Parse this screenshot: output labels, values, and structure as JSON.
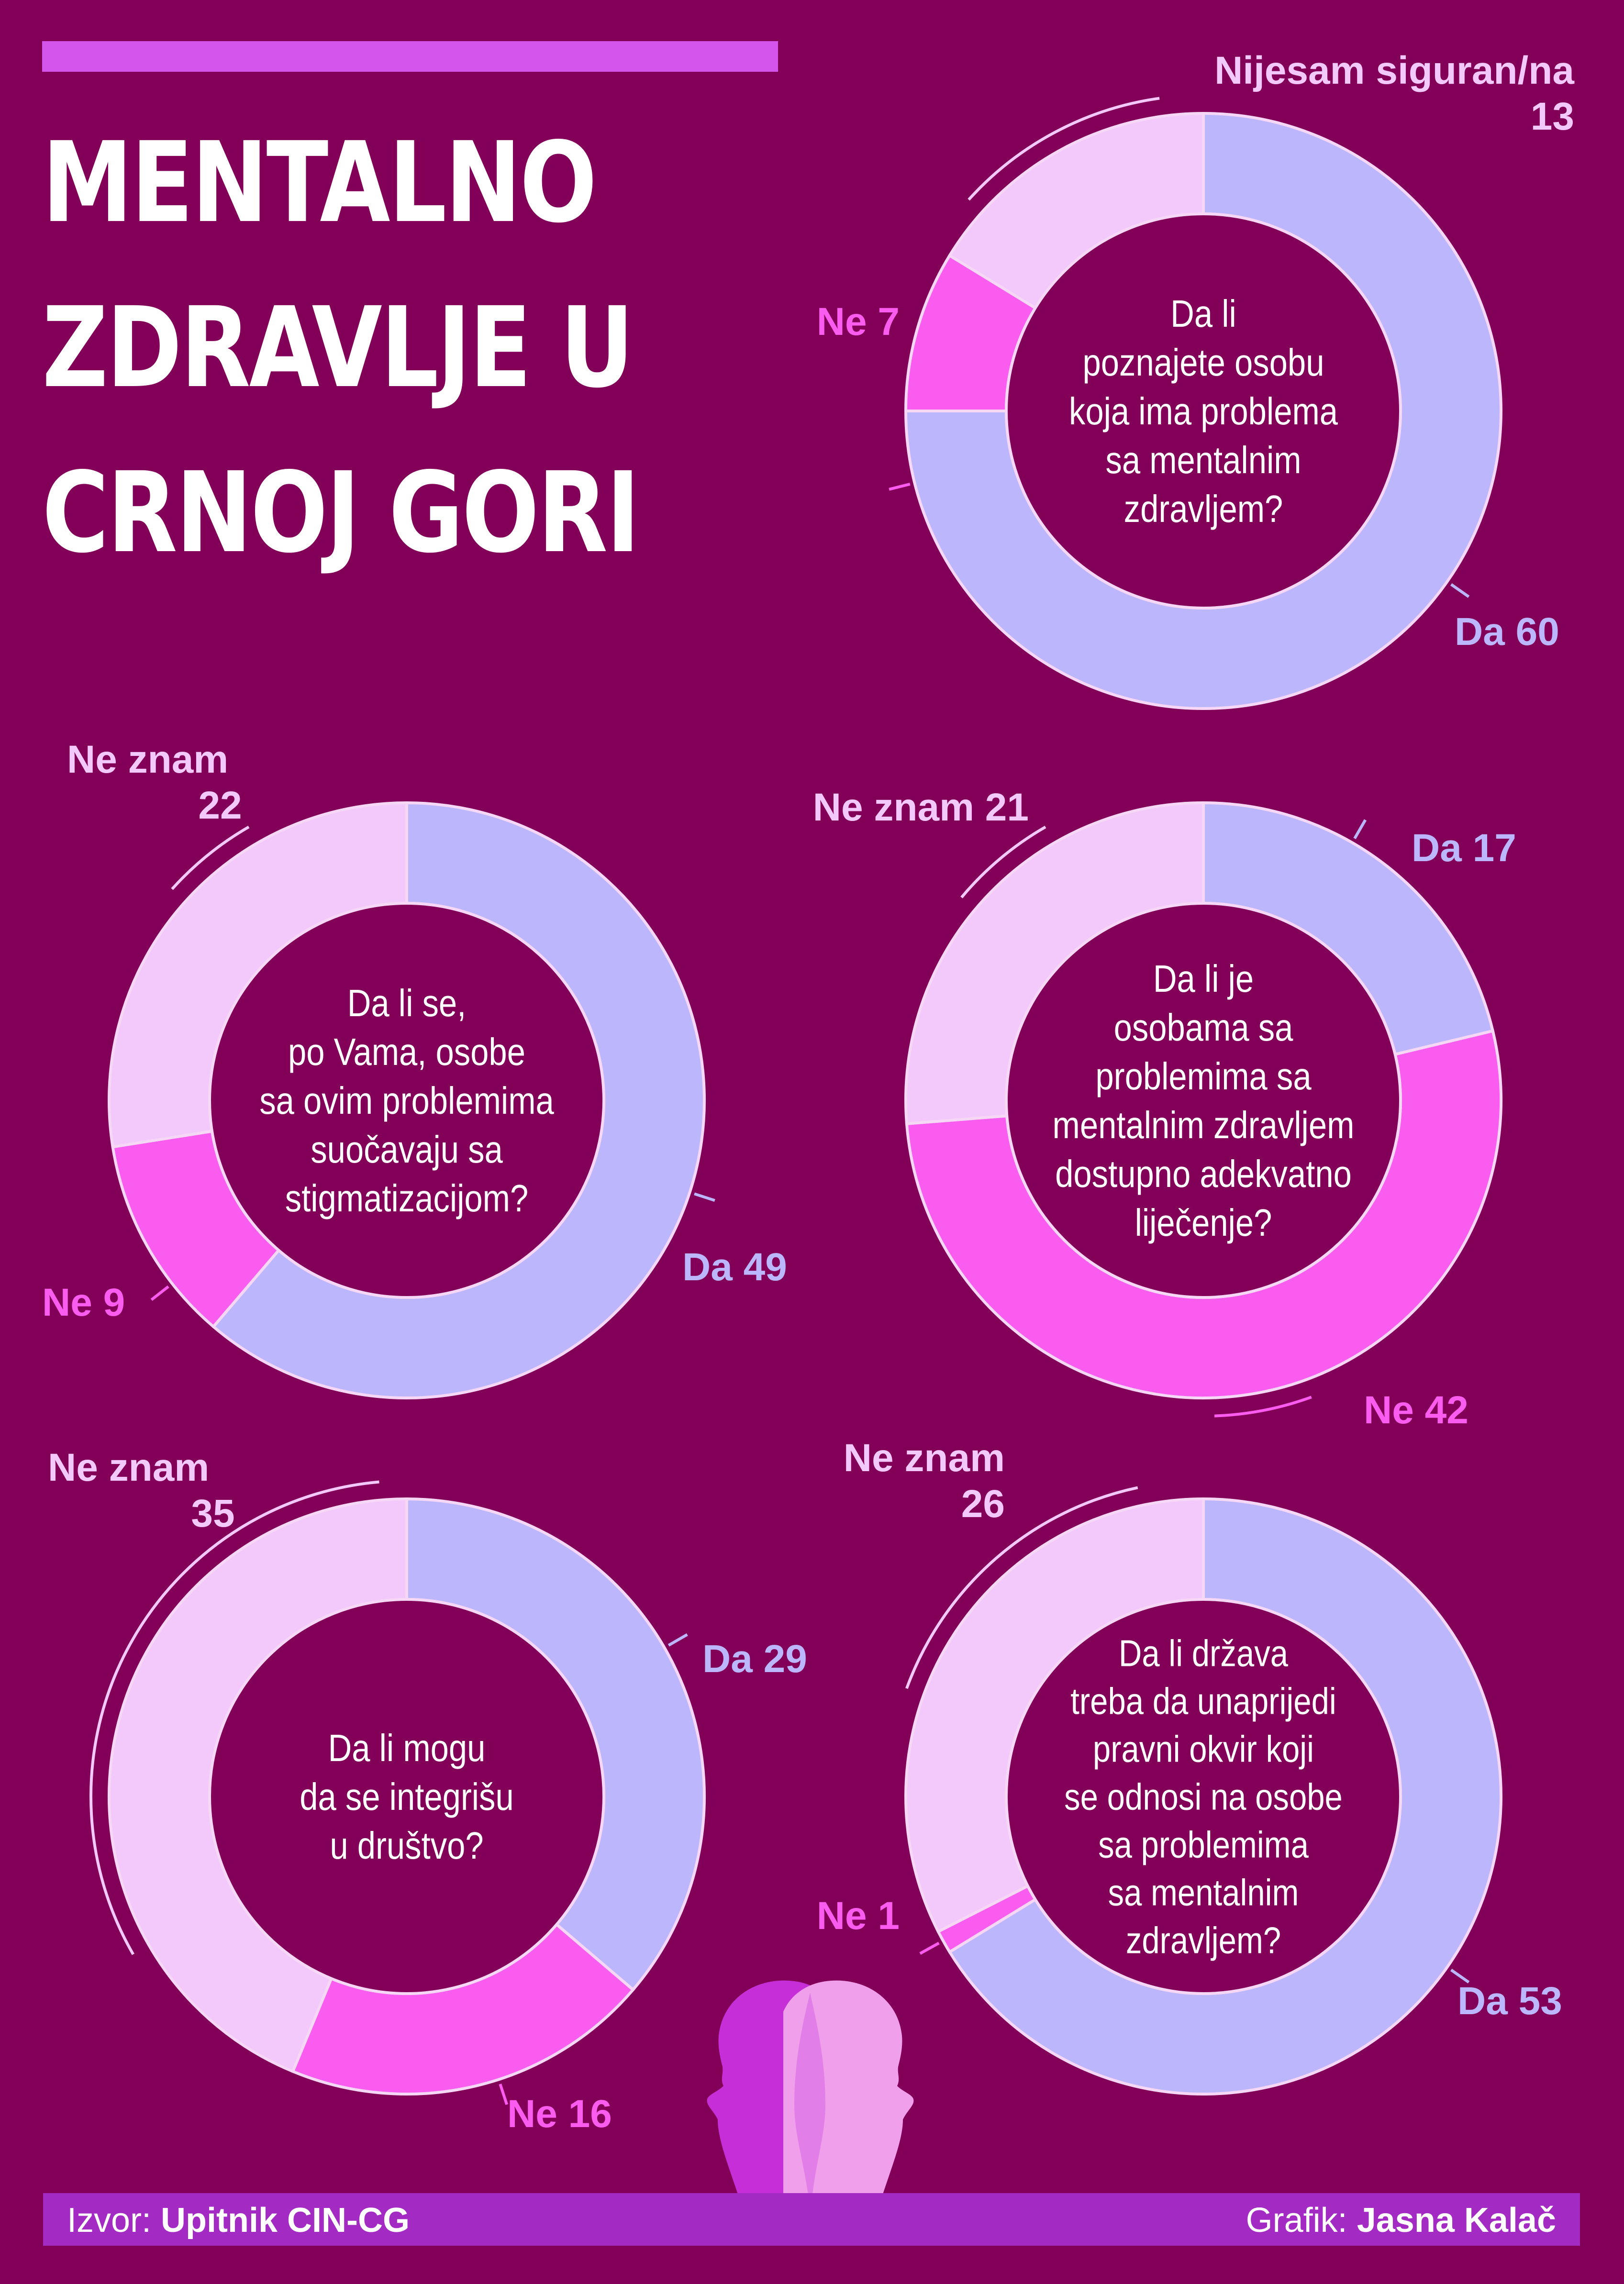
{
  "header": {
    "title_lines": [
      "MENTALNO",
      "ZDRAVLJE U",
      "CRNOJ GORI"
    ]
  },
  "footer": {
    "source_label": "Izvor:",
    "source_value": "Upitnik CIN-CG",
    "credit_label": "Grafik:",
    "credit_value": "Jasna Kalač"
  },
  "colors": {
    "background": "#820057",
    "da": "#bcb7fd",
    "ne": "#fb5cf0",
    "ne_znam": "#f3c8fa",
    "accent_bar": "#d455ec",
    "footer_bar": "#a42ac4"
  },
  "chart_data": [
    {
      "type": "pie",
      "question_lines": [
        "Da li",
        "poznajete osobu",
        "koja ima problema",
        "sa mentalnim",
        "zdravljem?"
      ],
      "slices": [
        {
          "name": "Da",
          "value": 60,
          "label": "Da 60",
          "color": "#bcb7fd"
        },
        {
          "name": "Ne",
          "value": 7,
          "label": "Ne 7",
          "color": "#fb5cf0"
        },
        {
          "name": "Nijesam siguran/na",
          "value": 13,
          "label_lines": [
            "Nijesam siguran/na",
            "13"
          ],
          "color": "#f3c8fa"
        }
      ]
    },
    {
      "type": "pie",
      "question_lines": [
        "Da li se,",
        "po Vama, osobe",
        "sa ovim problemima",
        "suočavaju sa",
        "stigmatizacijom?"
      ],
      "slices": [
        {
          "name": "Da",
          "value": 49,
          "label": "Da 49",
          "color": "#bcb7fd"
        },
        {
          "name": "Ne",
          "value": 9,
          "label": "Ne 9",
          "color": "#fb5cf0"
        },
        {
          "name": "Ne znam",
          "value": 22,
          "label_lines": [
            "Ne znam",
            "22"
          ],
          "color": "#f3c8fa"
        }
      ]
    },
    {
      "type": "pie",
      "question_lines": [
        "Da li je",
        "osobama sa",
        "problemima sa",
        "mentalnim zdravljem",
        "dostupno adekvatno",
        "liječenje?"
      ],
      "slices": [
        {
          "name": "Da",
          "value": 17,
          "label": "Da 17",
          "color": "#bcb7fd"
        },
        {
          "name": "Ne",
          "value": 42,
          "label": "Ne 42",
          "color": "#fb5cf0"
        },
        {
          "name": "Ne znam",
          "value": 21,
          "label": "Ne znam 21",
          "color": "#f3c8fa"
        }
      ]
    },
    {
      "type": "pie",
      "question_lines": [
        "Da li  mogu",
        "da se integrišu",
        "u društvo?"
      ],
      "slices": [
        {
          "name": "Da",
          "value": 29,
          "label": "Da 29",
          "color": "#bcb7fd"
        },
        {
          "name": "Ne",
          "value": 16,
          "label": "Ne 16",
          "color": "#fb5cf0"
        },
        {
          "name": "Ne znam",
          "value": 35,
          "label_lines": [
            "Ne znam",
            "35"
          ],
          "color": "#f3c8fa"
        }
      ]
    },
    {
      "type": "pie",
      "question_lines": [
        "Da li država",
        "treba da unaprijedi",
        "pravni okvir koji",
        "se odnosi na osobe",
        "sa problemima",
        "sa mentalnim",
        "zdravljem?"
      ],
      "slices": [
        {
          "name": "Da",
          "value": 53,
          "label": "Da 53",
          "color": "#bcb7fd"
        },
        {
          "name": "Ne",
          "value": 1,
          "label": "Ne 1",
          "color": "#fb5cf0"
        },
        {
          "name": "Ne znam",
          "value": 26,
          "label_lines": [
            "Ne znam",
            "26"
          ],
          "color": "#f3c8fa"
        }
      ]
    }
  ]
}
